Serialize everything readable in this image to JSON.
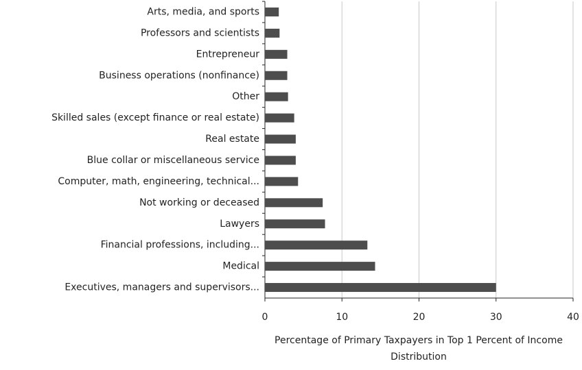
{
  "chart_data": {
    "type": "barh",
    "categories": [
      "Arts, media, and sports",
      "Professors and scientists",
      "Entrepreneur",
      "Business operations (nonfinance)",
      "Other",
      "Skilled sales (except finance or real estate)",
      "Real estate",
      "Blue collar or miscellaneous service",
      "Computer, math, engineering, technical...",
      "Not working or deceased",
      "Lawyers",
      "Financial professions, including...",
      "Medical",
      "Executives, managers and supervisors..."
    ],
    "values": [
      1.8,
      1.9,
      2.9,
      2.9,
      3.0,
      3.8,
      4.0,
      4.0,
      4.3,
      7.5,
      7.8,
      13.3,
      14.3,
      30
    ],
    "color": "#4d4d4d",
    "xlabel": "Percentage of Primary Taxpayers in Top 1 Percent of Income Distribution",
    "xlim": [
      0,
      40
    ],
    "xticks": [
      0,
      10,
      20,
      30,
      40
    ],
    "grid": true
  }
}
